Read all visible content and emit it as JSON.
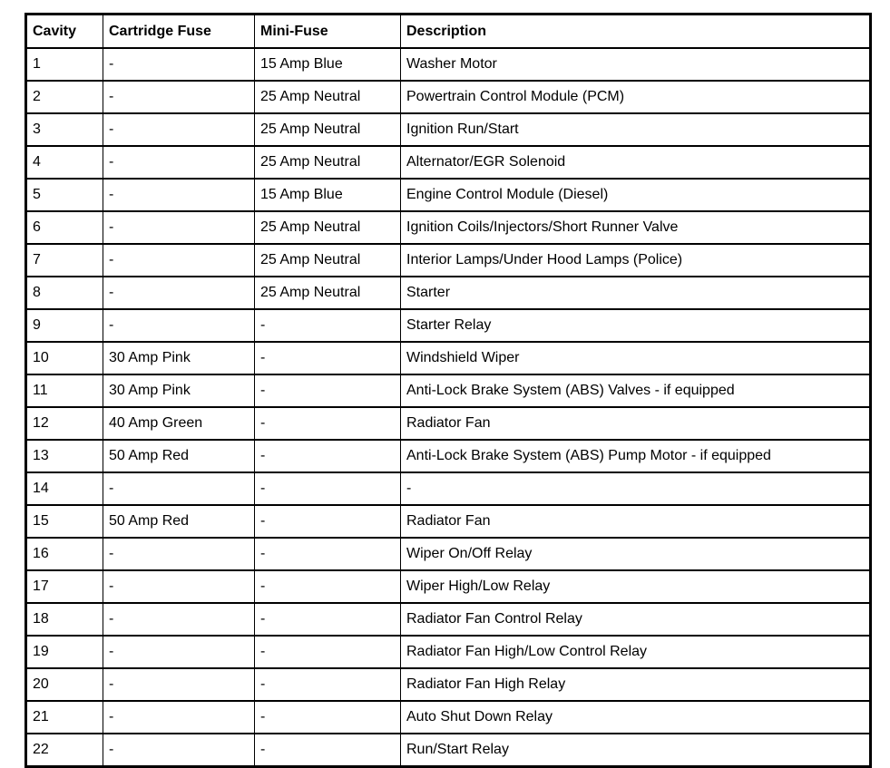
{
  "page": {
    "background_color": "#ffffff",
    "text_color": "#000000",
    "border_color": "#000000"
  },
  "table": {
    "columns": [
      "Cavity",
      "Cartridge Fuse",
      "Mini-Fuse",
      "Description"
    ],
    "rows": [
      [
        "1",
        "-",
        "15 Amp Blue",
        "Washer Motor"
      ],
      [
        "2",
        "-",
        "25 Amp Neutral",
        "Powertrain Control Module (PCM)"
      ],
      [
        "3",
        "-",
        "25 Amp Neutral",
        "Ignition Run/Start"
      ],
      [
        "4",
        "-",
        "25 Amp Neutral",
        "Alternator/EGR Solenoid"
      ],
      [
        "5",
        "-",
        "15 Amp Blue",
        "Engine Control Module (Diesel)"
      ],
      [
        "6",
        "-",
        "25 Amp Neutral",
        "Ignition Coils/Injectors/Short Runner Valve"
      ],
      [
        "7",
        "-",
        "25 Amp Neutral",
        "Interior Lamps/Under Hood Lamps (Police)"
      ],
      [
        "8",
        "-",
        "25 Amp Neutral",
        "Starter"
      ],
      [
        "9",
        "-",
        "-",
        "Starter Relay"
      ],
      [
        "10",
        "30 Amp Pink",
        "-",
        "Windshield Wiper"
      ],
      [
        "11",
        "30 Amp Pink",
        "-",
        "Anti-Lock Brake System (ABS) Valves - if equipped"
      ],
      [
        "12",
        "40 Amp Green",
        "-",
        "Radiator Fan"
      ],
      [
        "13",
        "50 Amp Red",
        "-",
        "Anti-Lock Brake System (ABS) Pump Motor - if equipped"
      ],
      [
        "14",
        "-",
        "-",
        "-"
      ],
      [
        "15",
        "50 Amp Red",
        "-",
        "Radiator Fan"
      ],
      [
        "16",
        "-",
        "-",
        "Wiper On/Off Relay"
      ],
      [
        "17",
        "-",
        "-",
        "Wiper High/Low Relay"
      ],
      [
        "18",
        "-",
        "-",
        "Radiator Fan Control Relay"
      ],
      [
        "19",
        "-",
        "-",
        "Radiator Fan High/Low Control Relay"
      ],
      [
        "20",
        "-",
        "-",
        "Radiator Fan High Relay"
      ],
      [
        "21",
        "-",
        "-",
        "Auto Shut Down Relay"
      ],
      [
        "22",
        "-",
        "-",
        "Run/Start Relay"
      ]
    ]
  }
}
